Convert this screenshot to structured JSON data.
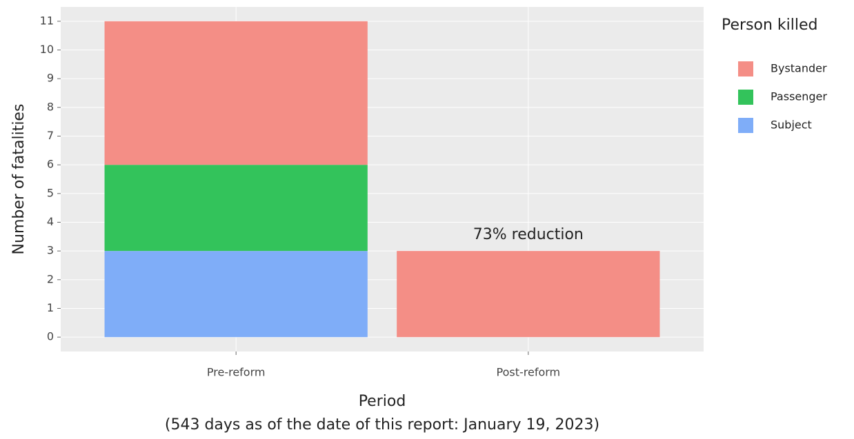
{
  "chart_data": {
    "type": "stacked_bar",
    "categories": [
      "Pre-reform",
      "Post-reform"
    ],
    "series": [
      {
        "name": "Bystander",
        "color": "#f48e86",
        "values": [
          5,
          3
        ]
      },
      {
        "name": "Passenger",
        "color": "#33c35b",
        "values": [
          3,
          0
        ]
      },
      {
        "name": "Subject",
        "color": "#7fadf8",
        "values": [
          3,
          0
        ]
      }
    ],
    "y_label": "Number of fatalities",
    "x_label": [
      "Period",
      "(543 days as of the date of this report: January 19, 2023)"
    ],
    "legend_title": "Person killed",
    "legend": "right",
    "annotation": "73% reduction",
    "ylim": [
      -0.5,
      11.5
    ],
    "yticks": [
      0,
      1,
      2,
      3,
      4,
      5,
      6,
      7,
      8,
      9,
      10,
      11
    ],
    "grid": true
  }
}
